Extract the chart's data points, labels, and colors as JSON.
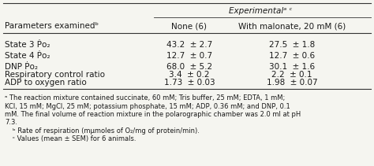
{
  "title": "Experimentalᵃ ᶜ",
  "col_header_1": "None (6)",
  "col_header_2": "With malonate, 20 mM (6)",
  "param_header": "Parameters examinedᵇ",
  "rows": [
    {
      "param": "State 3 Ṗo₂",
      "none": "43.2  ± 2.7",
      "malonate": "27.5  ± 1.8"
    },
    {
      "param": "State 4 Ṗo₂",
      "none": "12.7  ± 0.7",
      "malonate": "12.7  ± 0.6"
    },
    {
      "param": "DNP Ṗo₂",
      "none": "68.0  ± 5.2",
      "malonate": "30.1  ± 1.6"
    },
    {
      "param": "Respiratory control ratio",
      "none": "3.4  ± 0.2",
      "malonate": "2.2  ± 0.1"
    },
    {
      "param": "ADP to oxygen ratio",
      "none": "1.73  ± 0.03",
      "malonate": "1.98  ± 0.07"
    }
  ],
  "footnote_lines": [
    "ᵃ The reaction mixture contained succinate, 60 mM; Tris buffer, 25 mM; EDTA, 1 mM;",
    "KCl, 15 mM; MgCl, 25 mM; potassium phosphate, 15 mM; ADP, 0.36 mM; and DNP, 0.1",
    "mM. The final volume of reaction mixture in the polarographic chamber was 2.0 ml at pH",
    "7.3.",
    "ᵇ Rate of respiration (mμmoles of O₂/mg of protein/min).",
    "ᶜ Values (mean ± SEM) for 6 animals."
  ],
  "background": "#f5f5f0",
  "text_color": "#1a1a1a",
  "line_color": "#333333",
  "font_size_title": 7.5,
  "font_size_header": 7.5,
  "font_size_data": 7.5,
  "font_size_footnote": 6.0
}
